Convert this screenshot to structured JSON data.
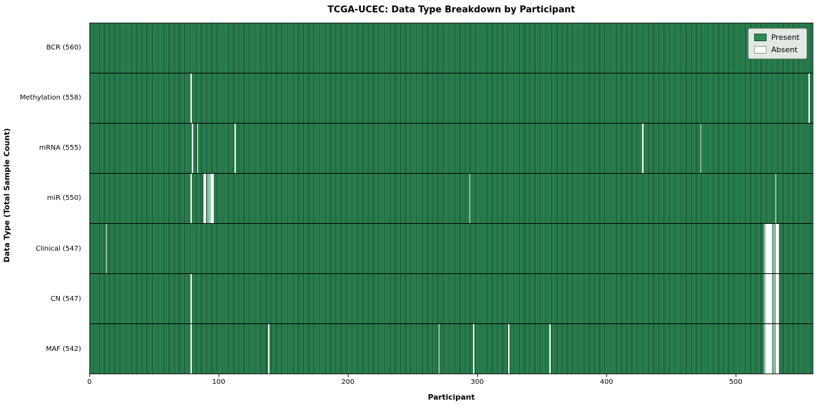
{
  "chart_data": {
    "type": "heatmap",
    "title": "TCGA-UCEC: Data Type Breakdown by Participant",
    "xlabel": "Participant",
    "ylabel": "Data Type (Total Sample Count)",
    "n_participants": 560,
    "xlim": [
      0,
      560
    ],
    "x_ticks": [
      0,
      100,
      200,
      300,
      400,
      500
    ],
    "legend": [
      {
        "label": "Present",
        "color": "#2e8b57"
      },
      {
        "label": "Absent",
        "color": "#ffffff"
      }
    ],
    "colors": {
      "present": "#2e8b57",
      "present_edge": "#16492d",
      "absent": "#fbfdfb",
      "row_divider": "#000000",
      "legend_bg": "#e2e8e2"
    },
    "rows": [
      {
        "label": "BCR (560)",
        "total": 560,
        "absent": []
      },
      {
        "label": "Methylation (558)",
        "total": 558,
        "absent": [
          78,
          557
        ]
      },
      {
        "label": "mRNA (555)",
        "total": 555,
        "absent": [
          79,
          83,
          112,
          428,
          473
        ]
      },
      {
        "label": "miR (550)",
        "total": 550,
        "absent": [
          78,
          88,
          89,
          91,
          92,
          93,
          94,
          95,
          294,
          531
        ]
      },
      {
        "label": "Clinical (547)",
        "total": 547,
        "absent": [
          12,
          522,
          523,
          524,
          525,
          526,
          527,
          528,
          529,
          530,
          531,
          532,
          533
        ]
      },
      {
        "label": "CN (547)",
        "total": 547,
        "absent": [
          78,
          522,
          523,
          524,
          525,
          526,
          527,
          528,
          529,
          530,
          531,
          532,
          533
        ]
      },
      {
        "label": "MAF (542)",
        "total": 542,
        "absent": [
          78,
          138,
          270,
          297,
          324,
          356,
          522,
          523,
          524,
          525,
          526,
          527,
          528,
          529,
          530,
          531,
          532,
          533
        ]
      }
    ]
  }
}
